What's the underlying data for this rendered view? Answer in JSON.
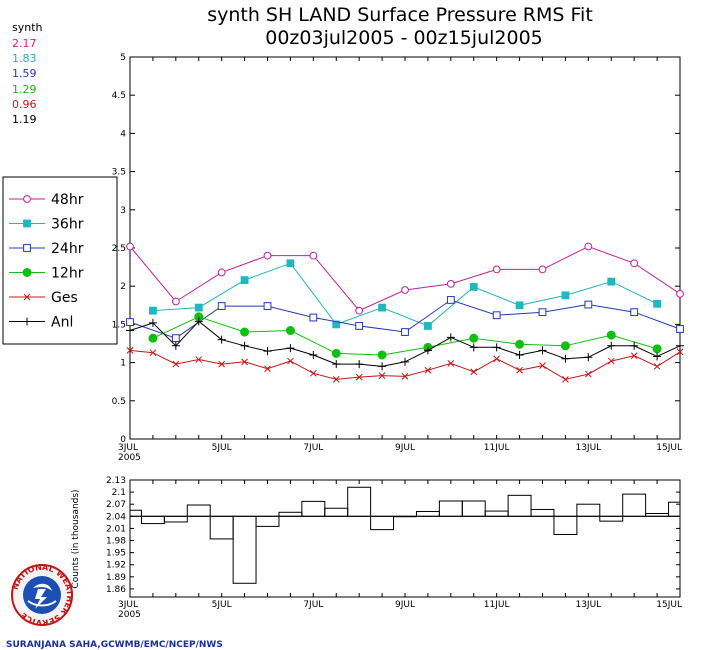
{
  "title_line1": "synth SH LAND Surface Pressure RMS Fit",
  "title_line2": "00z03jul2005 - 00z15jul2005",
  "stats": {
    "label": "synth",
    "values": [
      {
        "text": "2.17",
        "color": "#d6218c"
      },
      {
        "text": "1.83",
        "color": "#1fb7c0"
      },
      {
        "text": "1.59",
        "color": "#2438b8"
      },
      {
        "text": "1.29",
        "color": "#1db11d"
      },
      {
        "text": "0.96",
        "color": "#cc1414"
      },
      {
        "text": "1.19",
        "color": "#000000"
      }
    ]
  },
  "legend": [
    {
      "label": "48hr",
      "color": "#c020a0",
      "marker": "circle-open"
    },
    {
      "label": "36hr",
      "color": "#1fb7c0",
      "marker": "square-filled"
    },
    {
      "label": "24hr",
      "color": "#2438b8",
      "marker": "square-open"
    },
    {
      "label": "12hr",
      "color": "#10c010",
      "marker": "circle-filled"
    },
    {
      "label": "Ges",
      "color": "#cc1414",
      "marker": "x"
    },
    {
      "label": "Anl",
      "color": "#000000",
      "marker": "plus"
    }
  ],
  "credit": "SURANJANA SAHA,GCWMB/EMC/NCEP/NWS",
  "logo_text": "NATIONAL WEATHER SERVICE",
  "chart_data": [
    {
      "type": "line",
      "title": "synth SH LAND Surface Pressure RMS Fit",
      "xlim": [
        3,
        15
      ],
      "ylim": [
        0,
        5
      ],
      "yticks": [
        "0",
        "0.5",
        "1",
        "1.5",
        "2",
        "2.5",
        "3",
        "3.5",
        "4",
        "4.5",
        "5"
      ],
      "xticks": [
        {
          "x": 3,
          "label": "3JUL",
          "sub": "2005"
        },
        {
          "x": 5,
          "label": "5JUL",
          "sub": ""
        },
        {
          "x": 7,
          "label": "7JUL",
          "sub": ""
        },
        {
          "x": 9,
          "label": "9JUL",
          "sub": ""
        },
        {
          "x": 11,
          "label": "11JUL",
          "sub": ""
        },
        {
          "x": 13,
          "label": "13JUL",
          "sub": ""
        },
        {
          "x": 15,
          "label": "15JUL",
          "sub": ""
        }
      ],
      "series": [
        {
          "name": "48hr",
          "color": "#c020a0",
          "marker": "circle-open",
          "x": [
            3,
            4,
            5,
            6,
            7,
            8,
            9,
            10,
            11,
            12,
            13,
            14,
            15
          ],
          "y": [
            2.52,
            1.8,
            2.18,
            2.4,
            2.4,
            1.68,
            1.95,
            2.03,
            2.22,
            2.22,
            2.52,
            2.3,
            1.9
          ]
        },
        {
          "name": "36hr",
          "color": "#1fb7c0",
          "marker": "square-filled",
          "x": [
            3.5,
            4.5,
            5.5,
            6.5,
            7.5,
            8.5,
            9.5,
            10.5,
            11.5,
            12.5,
            13.5,
            14.5
          ],
          "y": [
            1.68,
            1.72,
            2.08,
            2.3,
            1.5,
            1.72,
            1.48,
            1.99,
            1.75,
            1.88,
            2.06,
            1.77
          ]
        },
        {
          "name": "24hr",
          "color": "#2438b8",
          "marker": "square-open",
          "x": [
            3,
            4,
            5,
            6,
            7,
            8,
            9,
            10,
            11,
            12,
            13,
            14,
            15
          ],
          "y": [
            1.53,
            1.32,
            1.74,
            1.74,
            1.59,
            1.48,
            1.4,
            1.82,
            1.62,
            1.66,
            1.76,
            1.66,
            1.44
          ]
        },
        {
          "name": "12hr",
          "color": "#10c010",
          "marker": "circle-filled",
          "x": [
            3.5,
            4.5,
            5.5,
            6.5,
            7.5,
            8.5,
            9.5,
            10.5,
            11.5,
            12.5,
            13.5,
            14.5
          ],
          "y": [
            1.32,
            1.6,
            1.4,
            1.42,
            1.12,
            1.1,
            1.2,
            1.32,
            1.24,
            1.22,
            1.36,
            1.18
          ]
        },
        {
          "name": "Ges",
          "color": "#cc1414",
          "marker": "x",
          "x": [
            3,
            3.5,
            4,
            4.5,
            5,
            5.5,
            6,
            6.5,
            7,
            7.5,
            8,
            8.5,
            9,
            9.5,
            10,
            10.5,
            11,
            11.5,
            12,
            12.5,
            13,
            13.5,
            14,
            14.5,
            15
          ],
          "y": [
            1.16,
            1.13,
            0.98,
            1.04,
            0.98,
            1.01,
            0.92,
            1.02,
            0.86,
            0.78,
            0.81,
            0.83,
            0.82,
            0.9,
            0.99,
            0.88,
            1.05,
            0.9,
            0.96,
            0.78,
            0.85,
            1.02,
            1.09,
            0.95,
            1.14
          ]
        },
        {
          "name": "Anl",
          "color": "#000000",
          "marker": "plus",
          "x": [
            3,
            3.5,
            4,
            4.5,
            5,
            5.5,
            6,
            6.5,
            7,
            7.5,
            8,
            8.5,
            9,
            9.5,
            10,
            10.5,
            11,
            11.5,
            12,
            12.5,
            13,
            13.5,
            14,
            14.5,
            15
          ],
          "y": [
            1.42,
            1.52,
            1.22,
            1.54,
            1.3,
            1.22,
            1.15,
            1.19,
            1.1,
            0.98,
            0.98,
            0.95,
            1.01,
            1.16,
            1.33,
            1.2,
            1.2,
            1.1,
            1.16,
            1.05,
            1.07,
            1.22,
            1.22,
            1.08,
            1.22
          ]
        }
      ]
    },
    {
      "type": "bar",
      "title": "",
      "ylabel": "Counts (in thousands)",
      "xlim": [
        3,
        15
      ],
      "ylim": [
        1.84,
        2.13
      ],
      "baseline": 2.04,
      "yticks": [
        "1.86",
        "1.89",
        "1.92",
        "1.95",
        "1.98",
        "2.01",
        "2.04",
        "2.07",
        "2.1",
        "2.13"
      ],
      "xticks": [
        {
          "x": 3,
          "label": "3JUL",
          "sub": "2005"
        },
        {
          "x": 5,
          "label": "5JUL",
          "sub": ""
        },
        {
          "x": 7,
          "label": "7JUL",
          "sub": ""
        },
        {
          "x": 9,
          "label": "9JUL",
          "sub": ""
        },
        {
          "x": 11,
          "label": "11JUL",
          "sub": ""
        },
        {
          "x": 13,
          "label": "13JUL",
          "sub": ""
        },
        {
          "x": 15,
          "label": "15JUL",
          "sub": ""
        }
      ],
      "x": [
        3,
        3.5,
        4,
        4.5,
        5,
        5.5,
        6,
        6.5,
        7,
        7.5,
        8,
        8.5,
        9,
        9.5,
        10,
        10.5,
        11,
        11.5,
        12,
        12.5,
        13,
        13.5,
        14,
        14.5,
        15
      ],
      "values": [
        2.055,
        2.022,
        2.026,
        2.068,
        1.984,
        1.874,
        2.015,
        2.05,
        2.077,
        2.06,
        2.112,
        2.007,
        2.039,
        2.052,
        2.078,
        2.078,
        2.053,
        2.092,
        2.057,
        1.995,
        2.07,
        2.028,
        2.095,
        2.047,
        2.075
      ]
    }
  ]
}
